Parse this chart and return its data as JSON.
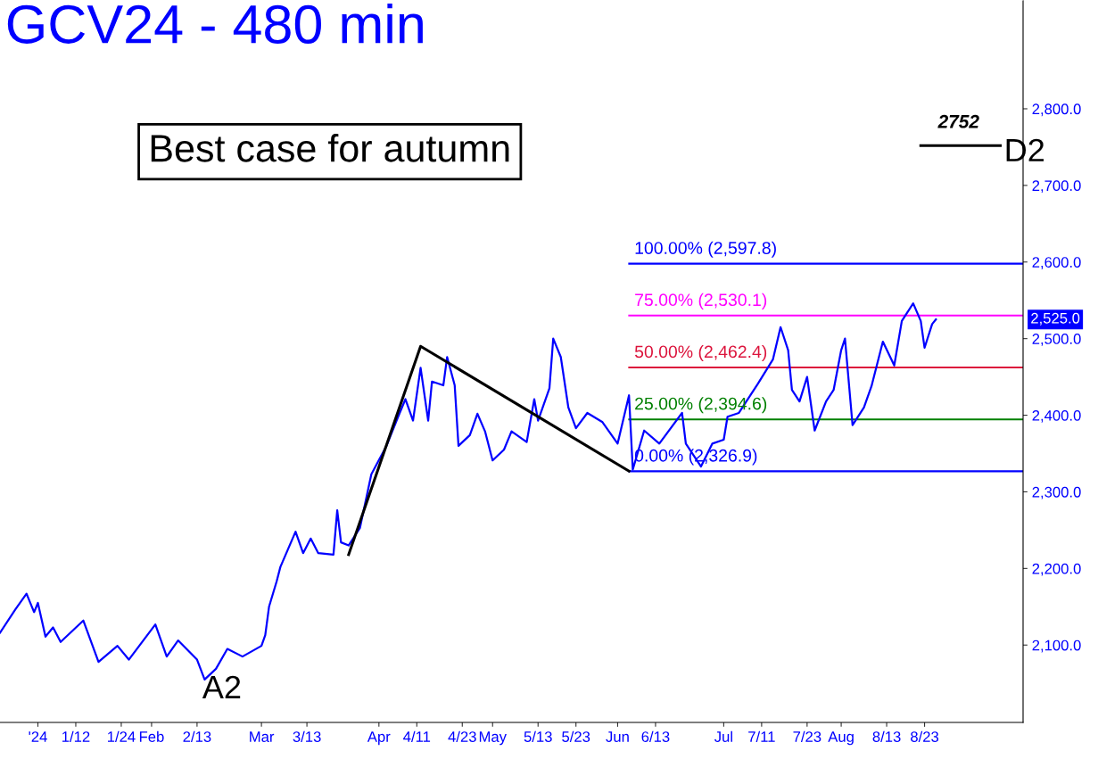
{
  "chart_data": {
    "type": "line",
    "title": "GCV24 - 480 min",
    "xlim": [
      "2023-12-23",
      "2024-09-18"
    ],
    "xticks": [
      {
        "value": "2024-01-02",
        "label": "'24"
      },
      {
        "value": "2024-01-12",
        "label": "1/12"
      },
      {
        "value": "2024-01-24",
        "label": "1/24"
      },
      {
        "value": "2024-02-01",
        "label": "Feb"
      },
      {
        "value": "2024-02-13",
        "label": "2/13"
      },
      {
        "value": "2024-03-01",
        "label": "Mar"
      },
      {
        "value": "2024-03-13",
        "label": "3/13"
      },
      {
        "value": "2024-04-01",
        "label": "Apr"
      },
      {
        "value": "2024-04-11",
        "label": "4/11"
      },
      {
        "value": "2024-04-23",
        "label": "4/23"
      },
      {
        "value": "2024-05-01",
        "label": "May"
      },
      {
        "value": "2024-05-13",
        "label": "5/13"
      },
      {
        "value": "2024-05-23",
        "label": "5/23"
      },
      {
        "value": "2024-06-03",
        "label": "Jun"
      },
      {
        "value": "2024-06-13",
        "label": "6/13"
      },
      {
        "value": "2024-07-01",
        "label": "Jul"
      },
      {
        "value": "2024-07-11",
        "label": "7/11"
      },
      {
        "value": "2024-07-23",
        "label": "7/23"
      },
      {
        "value": "2024-08-01",
        "label": "Aug"
      },
      {
        "value": "2024-08-13",
        "label": "8/13"
      },
      {
        "value": "2024-08-23",
        "label": "8/23"
      }
    ],
    "ylim": [
      1999,
      2942
    ],
    "yticks": [
      {
        "value": 2100,
        "label": "2,100.0"
      },
      {
        "value": 2200,
        "label": "2,200.0"
      },
      {
        "value": 2300,
        "label": "2,300.0"
      },
      {
        "value": 2400,
        "label": "2,400.0"
      },
      {
        "value": 2500,
        "label": "2,500.0"
      },
      {
        "value": 2600,
        "label": "2,600.0"
      },
      {
        "value": 2700,
        "label": "2,700.0"
      },
      {
        "value": 2800,
        "label": "2,800.0"
      }
    ],
    "grid": false,
    "legend": false,
    "marker": "none",
    "line_style": "solid",
    "series": [
      {
        "color": "#0000ff",
        "x": [
          "2023-12-23",
          "2023-12-27",
          "2023-12-30",
          "2024-01-01",
          "2024-01-02",
          "2024-01-04",
          "2024-01-06",
          "2024-01-08",
          "2024-01-14",
          "2024-01-18",
          "2024-01-23",
          "2024-01-26",
          "2024-02-02",
          "2024-02-05",
          "2024-02-08",
          "2024-02-13",
          "2024-02-15",
          "2024-02-18",
          "2024-02-21",
          "2024-02-25",
          "2024-03-01",
          "2024-03-02",
          "2024-03-03",
          "2024-03-05",
          "2024-03-06",
          "2024-03-08",
          "2024-03-10",
          "2024-03-12",
          "2024-03-14",
          "2024-03-16",
          "2024-03-20",
          "2024-03-21",
          "2024-03-22",
          "2024-03-24",
          "2024-03-27",
          "2024-03-30",
          "2024-04-03",
          "2024-04-06",
          "2024-04-08",
          "2024-04-10",
          "2024-04-12",
          "2024-04-14",
          "2024-04-15",
          "2024-04-18",
          "2024-04-19",
          "2024-04-21",
          "2024-04-22",
          "2024-04-25",
          "2024-04-27",
          "2024-04-29",
          "2024-05-01",
          "2024-05-04",
          "2024-05-06",
          "2024-05-10",
          "2024-05-12",
          "2024-05-13",
          "2024-05-16",
          "2024-05-17",
          "2024-05-19",
          "2024-05-21",
          "2024-05-23",
          "2024-05-26",
          "2024-05-30",
          "2024-06-03",
          "2024-06-06",
          "2024-06-07",
          "2024-06-10",
          "2024-06-14",
          "2024-06-20",
          "2024-06-21",
          "2024-06-25",
          "2024-06-28",
          "2024-07-01",
          "2024-07-02",
          "2024-07-05",
          "2024-07-10",
          "2024-07-14",
          "2024-07-16",
          "2024-07-18",
          "2024-07-19",
          "2024-07-21",
          "2024-07-23",
          "2024-07-25",
          "2024-07-28",
          "2024-07-30",
          "2024-08-01",
          "2024-08-02",
          "2024-08-04",
          "2024-08-07",
          "2024-08-09",
          "2024-08-12",
          "2024-08-15",
          "2024-08-17",
          "2024-08-20",
          "2024-08-22",
          "2024-08-23",
          "2024-08-25",
          "2024-08-26"
        ],
        "values": [
          2116,
          2146,
          2167,
          2143,
          2155,
          2111,
          2123,
          2104,
          2132,
          2078,
          2099,
          2081,
          2127,
          2085,
          2106,
          2081,
          2055,
          2069,
          2095,
          2085,
          2099,
          2113,
          2150,
          2183,
          2202,
          2225,
          2248,
          2220,
          2239,
          2220,
          2218,
          2276,
          2234,
          2230,
          2253,
          2323,
          2360,
          2397,
          2421,
          2393,
          2462,
          2393,
          2444,
          2439,
          2476,
          2439,
          2360,
          2374,
          2402,
          2379,
          2341,
          2355,
          2379,
          2365,
          2421,
          2393,
          2435,
          2500,
          2476,
          2410,
          2383,
          2403,
          2391,
          2363,
          2426,
          2329,
          2380,
          2363,
          2403,
          2363,
          2333,
          2363,
          2368,
          2398,
          2403,
          2441,
          2473,
          2515,
          2485,
          2433,
          2418,
          2450,
          2380,
          2418,
          2433,
          2485,
          2500,
          2387,
          2410,
          2438,
          2496,
          2465,
          2523,
          2546,
          2523,
          2488,
          2519,
          2525
        ]
      },
      {
        "color": "#000000",
        "x": [
          "2024-03-24",
          "2024-04-12",
          "2024-06-06"
        ],
        "values": [
          2218,
          2490,
          2327
        ]
      },
      {
        "color": "#000000",
        "x": [
          "2024-08-22",
          "2024-09-12"
        ],
        "values": [
          2752,
          2752
        ]
      }
    ],
    "ref_lines": [
      {
        "axis": "y",
        "value": 2597.8,
        "label": "100.00% (2,597.8)",
        "color": "#0000ff"
      },
      {
        "axis": "y",
        "value": 2530.1,
        "label": "75.00% (2,530.1)",
        "color": "#ff00ff"
      },
      {
        "axis": "y",
        "value": 2462.4,
        "label": "50.00% (2,462.4)",
        "color": "#dc143c"
      },
      {
        "axis": "y",
        "value": 2394.6,
        "label": "25.00% (2,394.6)",
        "color": "#008000"
      },
      {
        "axis": "y",
        "value": 2326.9,
        "label": "0.00% (2,326.9)",
        "color": "#0000ff"
      }
    ],
    "annotations": [
      "Best case for autumn",
      "A2",
      {
        "text": "2752",
        "x": "2024-09-01",
        "y": 2752
      },
      {
        "text": "D2",
        "x": "2024-09-12",
        "y": 2752
      },
      "2,525.0"
    ]
  }
}
